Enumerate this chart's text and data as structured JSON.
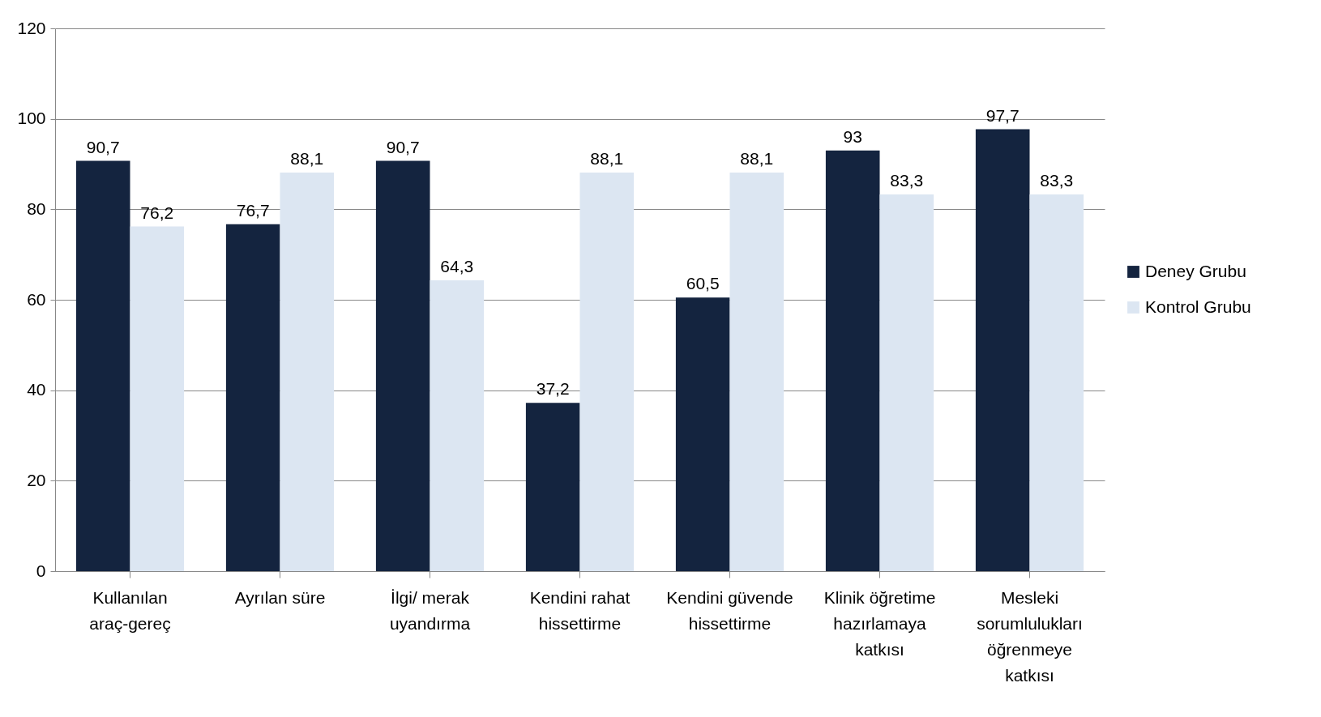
{
  "chart_data": {
    "type": "bar",
    "categories": [
      "Kullanılan araç-gereç",
      "Ayrılan süre",
      "İlgi/ merak uyandırma",
      "Kendini rahat hissettirme",
      "Kendini güvende hissettirme",
      "Klinik öğretime hazırlamaya katkısı",
      "Mesleki sorumlulukları öğrenmeye katkısı"
    ],
    "series": [
      {
        "name": "Deney Grubu",
        "color": "#14243f",
        "values": [
          90.7,
          76.7,
          90.7,
          37.2,
          60.5,
          93,
          97.7
        ],
        "value_labels": [
          "90,7",
          "76,7",
          "90,7",
          "37,2",
          "60,5",
          "93",
          "97,7"
        ]
      },
      {
        "name": "Kontrol Grubu",
        "color": "#dce6f2",
        "values": [
          76.2,
          88.1,
          64.3,
          88.1,
          88.1,
          83.3,
          83.3
        ],
        "value_labels": [
          "76,2",
          "88,1",
          "64,3",
          "88,1",
          "88,1",
          "83,3",
          "83,3"
        ]
      }
    ],
    "ylim": [
      0,
      120
    ],
    "yticks": [
      0,
      20,
      40,
      60,
      80,
      100,
      120
    ],
    "grid": "y",
    "legend": "right"
  }
}
